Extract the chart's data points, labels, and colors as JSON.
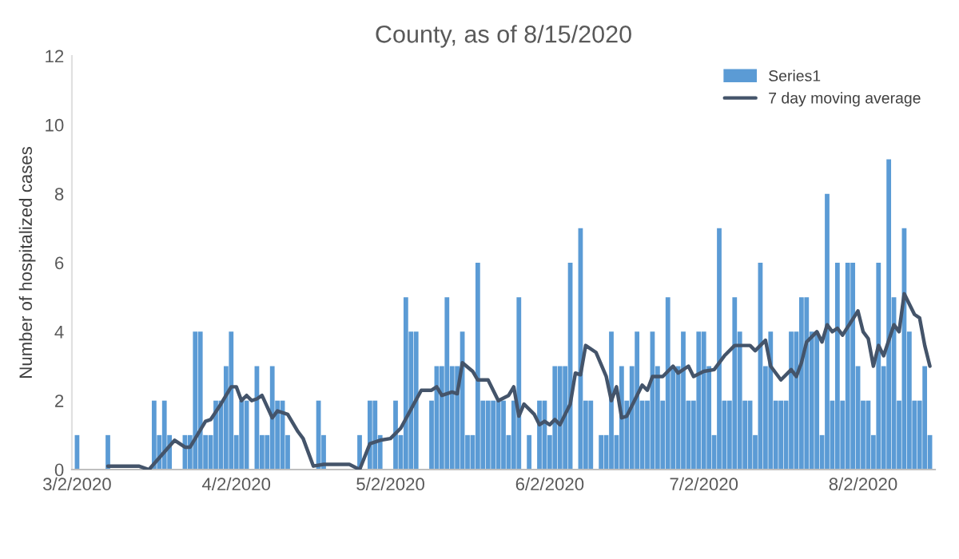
{
  "chart_data": {
    "type": "bar",
    "title": "County, as of 8/15/2020",
    "ylabel": "Number of hospitalized cases",
    "xlim": [
      "2020-03-01",
      "2020-08-16"
    ],
    "ylim": [
      0,
      12
    ],
    "yticks": [
      0,
      2,
      4,
      6,
      8,
      10,
      12
    ],
    "xticks": [
      {
        "value": "2020-03-02",
        "label": "3/2/2020"
      },
      {
        "value": "2020-04-02",
        "label": "4/2/2020"
      },
      {
        "value": "2020-05-02",
        "label": "5/2/2020"
      },
      {
        "value": "2020-06-02",
        "label": "6/2/2020"
      },
      {
        "value": "2020-07-02",
        "label": "7/2/2020"
      },
      {
        "value": "2020-08-02",
        "label": "8/2/2020"
      }
    ],
    "grid": false,
    "legend": "top right",
    "series": [
      {
        "name": "Series1",
        "color": "#5b9bd5",
        "x": [
          "2020-03-02",
          "2020-03-03",
          "2020-03-04",
          "2020-03-05",
          "2020-03-06",
          "2020-03-07",
          "2020-03-08",
          "2020-03-09",
          "2020-03-10",
          "2020-03-11",
          "2020-03-12",
          "2020-03-13",
          "2020-03-14",
          "2020-03-15",
          "2020-03-16",
          "2020-03-17",
          "2020-03-18",
          "2020-03-19",
          "2020-03-20",
          "2020-03-21",
          "2020-03-22",
          "2020-03-23",
          "2020-03-24",
          "2020-03-25",
          "2020-03-26",
          "2020-03-27",
          "2020-03-28",
          "2020-03-29",
          "2020-03-30",
          "2020-03-31",
          "2020-04-01",
          "2020-04-02",
          "2020-04-03",
          "2020-04-04",
          "2020-04-05",
          "2020-04-06",
          "2020-04-07",
          "2020-04-08",
          "2020-04-09",
          "2020-04-10",
          "2020-04-11",
          "2020-04-12",
          "2020-04-13",
          "2020-04-14",
          "2020-04-15",
          "2020-04-16",
          "2020-04-17",
          "2020-04-18",
          "2020-04-19",
          "2020-04-20",
          "2020-04-21",
          "2020-04-22",
          "2020-04-23",
          "2020-04-24",
          "2020-04-25",
          "2020-04-26",
          "2020-04-27",
          "2020-04-28",
          "2020-04-29",
          "2020-04-30",
          "2020-05-01",
          "2020-05-02",
          "2020-05-03",
          "2020-05-04",
          "2020-05-05",
          "2020-05-06",
          "2020-05-07",
          "2020-05-08",
          "2020-05-09",
          "2020-05-10",
          "2020-05-11",
          "2020-05-12",
          "2020-05-13",
          "2020-05-14",
          "2020-05-15",
          "2020-05-16",
          "2020-05-17",
          "2020-05-18",
          "2020-05-19",
          "2020-05-20",
          "2020-05-21",
          "2020-05-22",
          "2020-05-23",
          "2020-05-24",
          "2020-05-25",
          "2020-05-26",
          "2020-05-27",
          "2020-05-28",
          "2020-05-29",
          "2020-05-30",
          "2020-05-31",
          "2020-06-01",
          "2020-06-02",
          "2020-06-03",
          "2020-06-04",
          "2020-06-05",
          "2020-06-06",
          "2020-06-07",
          "2020-06-08",
          "2020-06-09",
          "2020-06-10",
          "2020-06-11",
          "2020-06-12",
          "2020-06-13",
          "2020-06-14",
          "2020-06-15",
          "2020-06-16",
          "2020-06-17",
          "2020-06-18",
          "2020-06-19",
          "2020-06-20",
          "2020-06-21",
          "2020-06-22",
          "2020-06-23",
          "2020-06-24",
          "2020-06-25",
          "2020-06-26",
          "2020-06-27",
          "2020-06-28",
          "2020-06-29",
          "2020-06-30",
          "2020-07-01",
          "2020-07-02",
          "2020-07-03",
          "2020-07-04",
          "2020-07-05",
          "2020-07-06",
          "2020-07-07",
          "2020-07-08",
          "2020-07-09",
          "2020-07-10",
          "2020-07-11",
          "2020-07-12",
          "2020-07-13",
          "2020-07-14",
          "2020-07-15",
          "2020-07-16",
          "2020-07-17",
          "2020-07-18",
          "2020-07-19",
          "2020-07-20",
          "2020-07-21",
          "2020-07-22",
          "2020-07-23",
          "2020-07-24",
          "2020-07-25",
          "2020-07-26",
          "2020-07-27",
          "2020-07-28",
          "2020-07-29",
          "2020-07-30",
          "2020-07-31",
          "2020-08-01",
          "2020-08-02",
          "2020-08-03",
          "2020-08-04",
          "2020-08-05",
          "2020-08-06",
          "2020-08-07",
          "2020-08-08",
          "2020-08-09",
          "2020-08-10",
          "2020-08-11",
          "2020-08-12",
          "2020-08-13",
          "2020-08-14",
          "2020-08-15"
        ],
        "values": [
          1,
          0,
          0,
          0,
          0,
          0,
          1,
          0,
          0,
          0,
          0,
          0,
          0,
          0,
          0,
          2,
          1,
          2,
          1,
          0,
          0,
          1,
          1,
          4,
          4,
          1,
          1,
          2,
          2,
          3,
          4,
          1,
          2,
          2,
          0,
          3,
          1,
          1,
          3,
          2,
          2,
          1,
          0,
          0,
          0,
          0,
          0,
          2,
          1,
          0,
          0,
          0,
          0,
          0,
          0,
          1,
          0,
          2,
          2,
          1,
          0,
          0,
          2,
          1,
          5,
          4,
          4,
          0,
          0,
          2,
          3,
          3,
          5,
          3,
          3,
          4,
          1,
          1,
          6,
          2,
          2,
          2,
          2,
          2,
          1,
          2,
          5,
          0,
          1,
          0,
          2,
          2,
          1,
          3,
          3,
          3,
          6,
          0,
          7,
          2,
          2,
          0,
          1,
          1,
          4,
          1,
          3,
          2,
          3,
          4,
          2,
          2,
          4,
          3,
          2,
          5,
          3,
          3,
          4,
          2,
          2,
          4,
          4,
          3,
          1,
          7,
          2,
          2,
          5,
          4,
          2,
          2,
          1,
          6,
          3,
          4,
          2,
          2,
          2,
          4,
          4,
          5,
          5,
          4,
          4,
          1,
          8,
          2,
          6,
          2,
          6,
          6,
          3,
          2,
          2,
          1,
          6,
          3,
          9,
          5,
          2,
          7,
          4,
          2,
          2,
          3,
          1
        ]
      },
      {
        "name": "7 day moving average",
        "type": "line",
        "color": "#44546a",
        "line_style": "solid",
        "x": [
          "2020-03-08",
          "2020-03-14",
          "2020-03-16",
          "2020-03-21",
          "2020-03-23",
          "2020-03-24",
          "2020-03-27",
          "2020-03-28",
          "2020-03-30",
          "2020-04-01",
          "2020-04-02",
          "2020-04-03",
          "2020-04-04",
          "2020-04-05",
          "2020-04-06",
          "2020-04-07",
          "2020-04-09",
          "2020-04-10",
          "2020-04-12",
          "2020-04-14",
          "2020-04-15",
          "2020-04-17",
          "2020-04-19",
          "2020-04-24",
          "2020-04-26",
          "2020-04-28",
          "2020-04-30",
          "2020-05-02",
          "2020-05-04",
          "2020-05-08",
          "2020-05-10",
          "2020-05-11",
          "2020-05-12",
          "2020-05-14",
          "2020-05-15",
          "2020-05-16",
          "2020-05-18",
          "2020-05-19",
          "2020-05-21",
          "2020-05-23",
          "2020-05-25",
          "2020-05-26",
          "2020-05-27",
          "2020-05-28",
          "2020-05-30",
          "2020-05-31",
          "2020-06-01",
          "2020-06-02",
          "2020-06-03",
          "2020-06-04",
          "2020-06-06",
          "2020-06-07",
          "2020-06-08",
          "2020-06-09",
          "2020-06-11",
          "2020-06-13",
          "2020-06-14",
          "2020-06-15",
          "2020-06-16",
          "2020-06-17",
          "2020-06-20",
          "2020-06-21",
          "2020-06-22",
          "2020-06-24",
          "2020-06-26",
          "2020-06-27",
          "2020-06-29",
          "2020-06-30",
          "2020-07-02",
          "2020-07-04",
          "2020-07-06",
          "2020-07-08",
          "2020-07-11",
          "2020-07-12",
          "2020-07-14",
          "2020-07-15",
          "2020-07-17",
          "2020-07-19",
          "2020-07-20",
          "2020-07-21",
          "2020-07-22",
          "2020-07-24",
          "2020-07-25",
          "2020-07-26",
          "2020-07-27",
          "2020-07-28",
          "2020-07-29",
          "2020-08-01",
          "2020-08-02",
          "2020-08-03",
          "2020-08-04",
          "2020-08-05",
          "2020-08-06",
          "2020-08-08",
          "2020-08-09",
          "2020-08-10",
          "2020-08-12",
          "2020-08-13",
          "2020-08-14",
          "2020-08-15"
        ],
        "values": [
          0.1,
          0.1,
          0,
          0.85,
          0.65,
          0.65,
          1.4,
          1.45,
          1.9,
          2.4,
          2.4,
          2.0,
          2.15,
          2.0,
          2.05,
          2.15,
          1.5,
          1.7,
          1.6,
          1.1,
          0.9,
          0.1,
          0.15,
          0.15,
          0,
          0.75,
          0.85,
          0.9,
          1.2,
          2.3,
          2.3,
          2.4,
          2.15,
          2.25,
          2.2,
          3.1,
          2.85,
          2.6,
          2.6,
          2.0,
          2.15,
          2.4,
          1.55,
          1.9,
          1.6,
          1.3,
          1.4,
          1.3,
          1.45,
          1.3,
          1.9,
          2.8,
          2.75,
          3.6,
          3.4,
          2.7,
          2.0,
          2.4,
          1.5,
          1.55,
          2.45,
          2.3,
          2.7,
          2.7,
          3.0,
          2.8,
          3.0,
          2.7,
          2.85,
          2.9,
          3.3,
          3.6,
          3.6,
          3.45,
          3.75,
          3.0,
          2.6,
          2.9,
          2.7,
          3.1,
          3.7,
          4.0,
          3.7,
          4.2,
          4.0,
          4.1,
          3.9,
          4.6,
          4.0,
          3.8,
          3.0,
          3.6,
          3.3,
          4.2,
          4.0,
          5.1,
          4.5,
          4.4,
          3.6,
          3.0
        ]
      }
    ]
  }
}
